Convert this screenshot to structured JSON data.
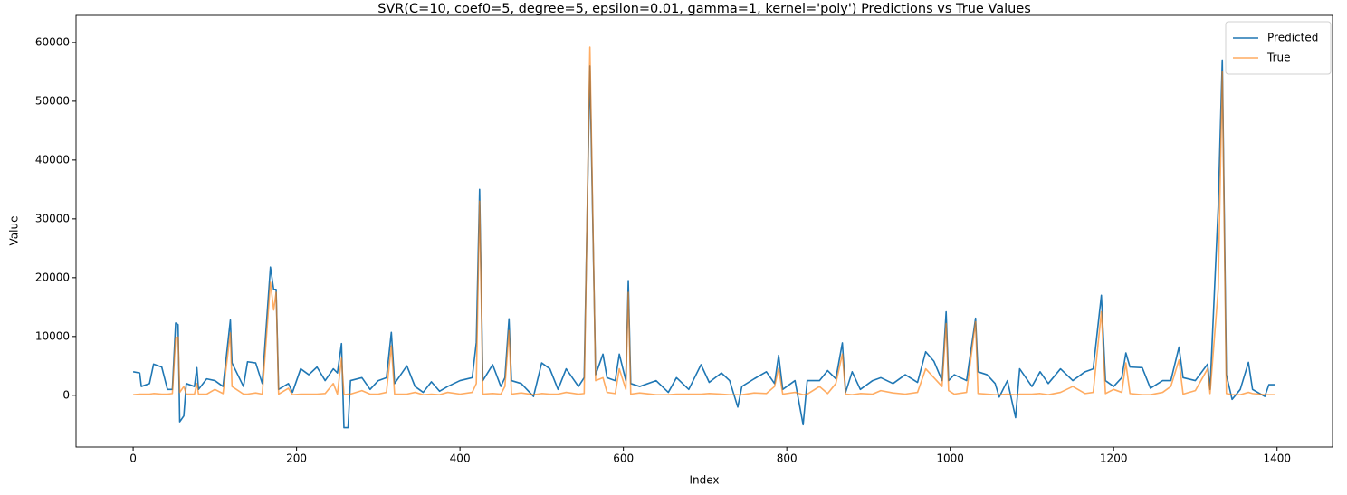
{
  "chart_data": {
    "type": "line",
    "title": "SVR(C=10, coef0=5, degree=5, epsilon=0.01, gamma=1, kernel='poly') Predictions vs True Values",
    "x_label": "Index",
    "y_label": "Value",
    "x": [
      0,
      8,
      10,
      20,
      25,
      35,
      42,
      48,
      52,
      55,
      57,
      62,
      65,
      75,
      78,
      80,
      90,
      100,
      110,
      119,
      121,
      135,
      140,
      150,
      158,
      168,
      172,
      175,
      178,
      190,
      195,
      205,
      215,
      225,
      235,
      245,
      250,
      255,
      258,
      263,
      266,
      280,
      290,
      300,
      310,
      316,
      320,
      335,
      345,
      355,
      365,
      375,
      385,
      400,
      415,
      420,
      424,
      428,
      440,
      450,
      455,
      460,
      463,
      475,
      490,
      500,
      510,
      520,
      530,
      545,
      552,
      559,
      566,
      575,
      580,
      590,
      595,
      603,
      606,
      609,
      620,
      640,
      655,
      665,
      680,
      695,
      705,
      720,
      730,
      740,
      745,
      760,
      775,
      785,
      790,
      795,
      810,
      820,
      825,
      840,
      850,
      860,
      868,
      872,
      880,
      890,
      905,
      915,
      930,
      945,
      960,
      970,
      980,
      990,
      995,
      998,
      1005,
      1020,
      1031,
      1034,
      1045,
      1055,
      1060,
      1070,
      1080,
      1085,
      1100,
      1110,
      1120,
      1135,
      1150,
      1165,
      1175,
      1185,
      1190,
      1200,
      1210,
      1215,
      1220,
      1235,
      1245,
      1260,
      1270,
      1280,
      1285,
      1300,
      1315,
      1318,
      1328,
      1333,
      1338,
      1345,
      1355,
      1365,
      1370,
      1385,
      1390,
      1398
    ],
    "series": [
      {
        "name": "Predicted",
        "color": "#1f77b4",
        "values": [
          4000,
          3800,
          1500,
          2000,
          5300,
          4800,
          1000,
          1000,
          12300,
          12000,
          -4500,
          -3500,
          2000,
          1500,
          4700,
          1000,
          2800,
          2500,
          1500,
          12800,
          5500,
          1500,
          5700,
          5500,
          2000,
          21800,
          18000,
          18000,
          1000,
          2000,
          500,
          4500,
          3500,
          4800,
          2500,
          4500,
          3800,
          8800,
          -5500,
          -5500,
          2500,
          3000,
          1000,
          2500,
          3000,
          10700,
          2000,
          5000,
          1500,
          500,
          2300,
          700,
          1500,
          2500,
          3000,
          9000,
          35000,
          2500,
          5200,
          1500,
          3000,
          13000,
          2500,
          2000,
          -200,
          5500,
          4500,
          1000,
          4500,
          1500,
          3000,
          56000,
          3500,
          7000,
          3000,
          2500,
          7000,
          2500,
          19500,
          2000,
          1500,
          2500,
          500,
          3000,
          1000,
          5200,
          2200,
          3800,
          2500,
          -2000,
          1500,
          2800,
          4000,
          2000,
          6800,
          1000,
          2500,
          -5000,
          2500,
          2500,
          4200,
          2800,
          8900,
          500,
          4000,
          1000,
          2500,
          3000,
          2000,
          3500,
          2200,
          7400,
          5800,
          2500,
          14200,
          2500,
          3500,
          2500,
          13100,
          4000,
          3500,
          2000,
          -300,
          2500,
          -3800,
          4500,
          1500,
          4000,
          2000,
          4500,
          2500,
          4000,
          4500,
          17000,
          2500,
          1500,
          3000,
          7200,
          4800,
          4700,
          1200,
          2500,
          2500,
          8200,
          3000,
          2500,
          5300,
          1000,
          32000,
          57000,
          3500,
          -700,
          1000,
          5600,
          1000,
          -200,
          1800,
          1800
        ]
      },
      {
        "name": "True",
        "color": "#ff7f0e",
        "values": [
          100,
          200,
          200,
          200,
          300,
          200,
          200,
          300,
          9800,
          9900,
          500,
          1500,
          200,
          200,
          2000,
          200,
          200,
          1000,
          300,
          10600,
          1500,
          200,
          200,
          400,
          200,
          19200,
          14500,
          17500,
          200,
          1200,
          100,
          200,
          200,
          200,
          300,
          2000,
          200,
          6300,
          100,
          200,
          200,
          800,
          200,
          200,
          500,
          8400,
          200,
          200,
          500,
          100,
          200,
          100,
          500,
          200,
          500,
          2000,
          33000,
          200,
          300,
          200,
          1500,
          11000,
          200,
          400,
          100,
          300,
          200,
          200,
          500,
          200,
          300,
          59200,
          2500,
          3000,
          500,
          300,
          4500,
          1000,
          17500,
          200,
          400,
          100,
          100,
          200,
          200,
          200,
          300,
          200,
          100,
          100,
          100,
          400,
          300,
          1500,
          4600,
          200,
          500,
          100,
          200,
          1500,
          300,
          2000,
          7000,
          200,
          100,
          300,
          200,
          800,
          400,
          200,
          500,
          4500,
          3000,
          1500,
          12200,
          800,
          200,
          500,
          12500,
          300,
          200,
          100,
          100,
          200,
          100,
          200,
          200,
          300,
          100,
          500,
          1500,
          300,
          500,
          14200,
          300,
          1000,
          500,
          5500,
          300,
          100,
          100,
          500,
          1500,
          6000,
          200,
          800,
          4500,
          300,
          18000,
          55000,
          300,
          100,
          100,
          500,
          300,
          100,
          100,
          100
        ]
      }
    ],
    "xlim": [
      -69.9,
      1467.9
    ],
    "ylim": [
      -8800,
      64600
    ],
    "xticks": [
      0,
      200,
      400,
      600,
      800,
      1000,
      1200,
      1400
    ],
    "yticks": [
      0,
      10000,
      20000,
      30000,
      40000,
      50000,
      60000
    ],
    "legend": "upper right"
  }
}
